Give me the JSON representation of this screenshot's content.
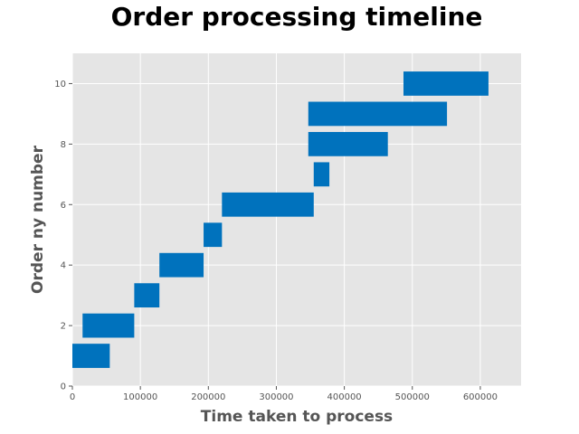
{
  "chart_data": {
    "type": "bar",
    "orientation": "horizontal",
    "title": "Order processing timeline",
    "xlabel": "Time taken to process",
    "ylabel": "Order ny number",
    "xlim": [
      0,
      660000
    ],
    "ylim": [
      0,
      11
    ],
    "xticks": [
      0,
      100000,
      200000,
      300000,
      400000,
      500000,
      600000
    ],
    "xtick_labels": [
      "0",
      "100000",
      "200000",
      "300000",
      "400000",
      "500000",
      "600000"
    ],
    "yticks": [
      0,
      2,
      4,
      6,
      8,
      10
    ],
    "ytick_labels": [
      "0",
      "2",
      "4",
      "6",
      "8",
      "10"
    ],
    "grid": true,
    "style": "ggplot",
    "bar_color": "#0072bd",
    "bars": [
      {
        "order": 1,
        "start": 0,
        "end": 55000
      },
      {
        "order": 2,
        "start": 15000,
        "end": 91000
      },
      {
        "order": 3,
        "start": 91000,
        "end": 128000
      },
      {
        "order": 4,
        "start": 128000,
        "end": 193000
      },
      {
        "order": 5,
        "start": 193000,
        "end": 220000
      },
      {
        "order": 6,
        "start": 220000,
        "end": 355000
      },
      {
        "order": 7,
        "start": 355000,
        "end": 378000
      },
      {
        "order": 8,
        "start": 347000,
        "end": 464000
      },
      {
        "order": 9,
        "start": 347000,
        "end": 551000
      },
      {
        "order": 10,
        "start": 487000,
        "end": 612000
      }
    ]
  }
}
